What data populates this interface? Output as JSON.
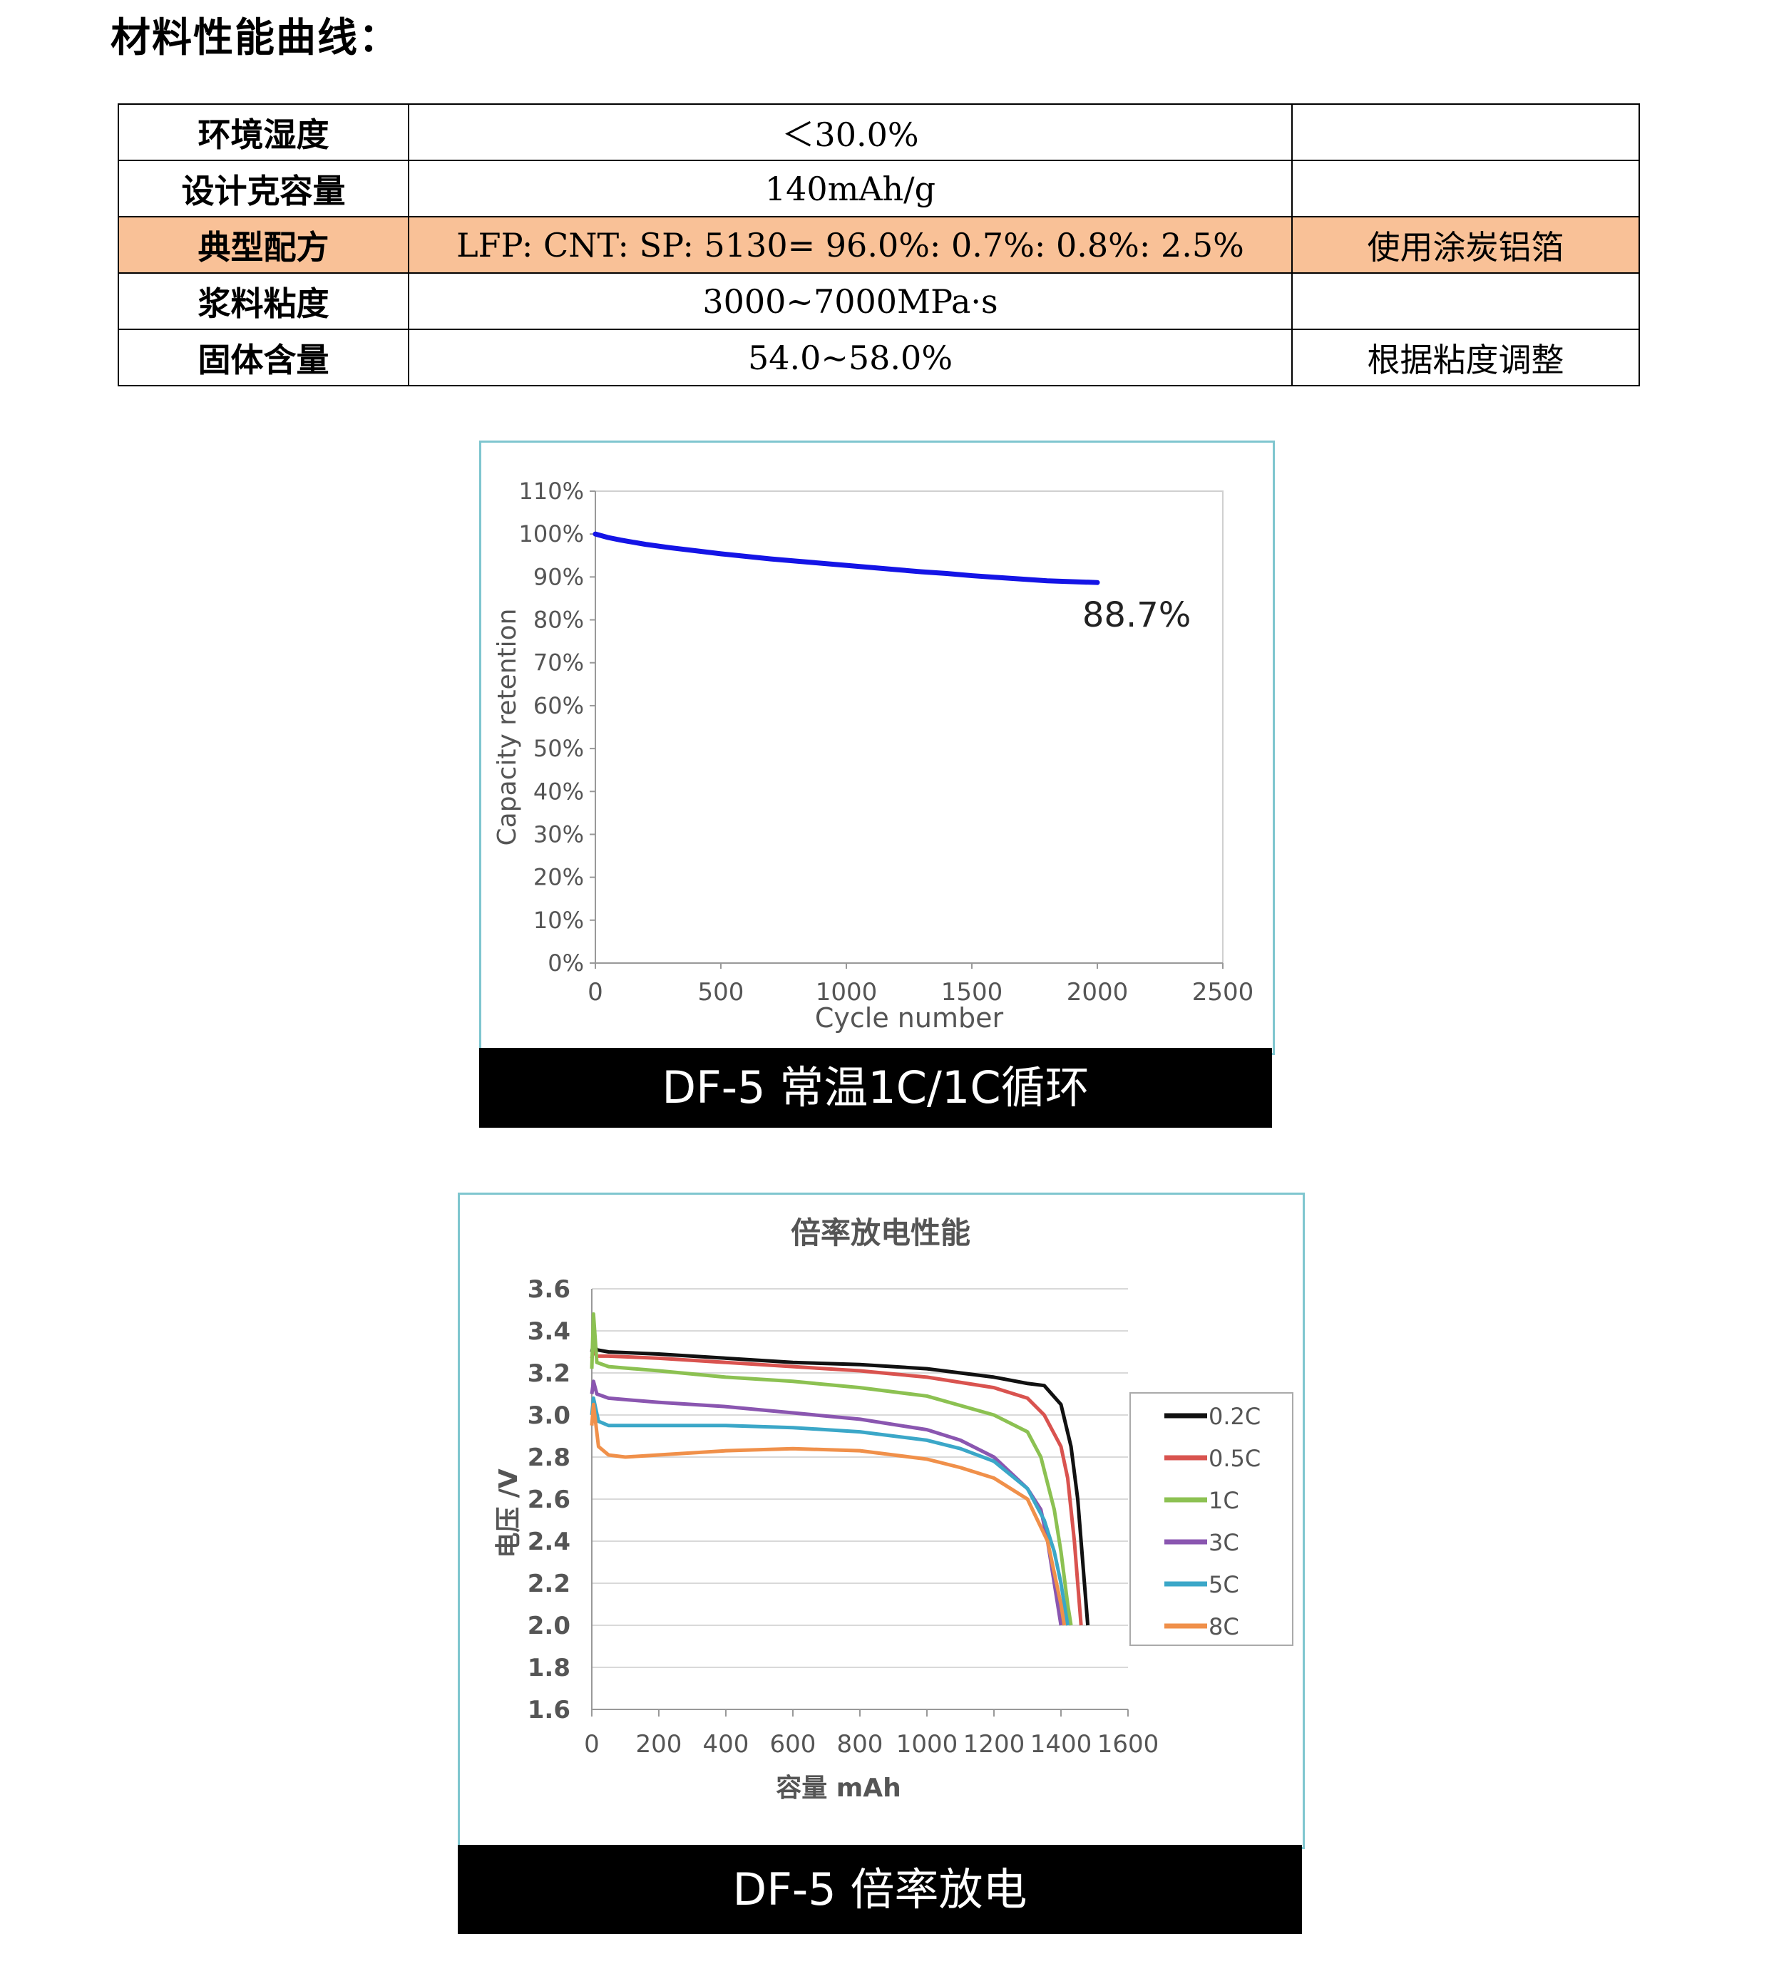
{
  "heading": "材料性能曲线：",
  "table": {
    "rows": [
      {
        "key": "环境湿度",
        "value": "＜30.0%",
        "note": ""
      },
      {
        "key": "设计克容量",
        "value": "140mAh/g",
        "note": ""
      },
      {
        "key": "典型配方",
        "value": "LFP: CNT: SP: 5130= 96.0%: 0.7%: 0.8%: 2.5%",
        "note": "使用涂炭铝箔"
      },
      {
        "key": "浆料粘度",
        "value": "3000~7000MPa·s",
        "note": ""
      },
      {
        "key": "固体含量",
        "value": "54.0~58.0%",
        "note": "根据粘度调整"
      }
    ]
  },
  "chart_data": [
    {
      "type": "line",
      "xlabel": "Cycle number",
      "ylabel": "Capacity retention",
      "xlim": [
        0,
        2500
      ],
      "ylim": [
        0,
        110
      ],
      "xticks": [
        "0",
        "500",
        "1000",
        "1500",
        "2000",
        "2500"
      ],
      "yticks": [
        "0%",
        "10%",
        "20%",
        "30%",
        "40%",
        "50%",
        "60%",
        "70%",
        "80%",
        "90%",
        "100%",
        "110%"
      ],
      "series": [
        {
          "color": "#1414e6",
          "x": [
            0,
            50,
            100,
            200,
            300,
            400,
            500,
            600,
            700,
            800,
            900,
            1000,
            1100,
            1200,
            1300,
            1400,
            1500,
            1600,
            1700,
            1800,
            1900,
            2000
          ],
          "y": [
            100,
            99.2,
            98.6,
            97.6,
            96.8,
            96.1,
            95.4,
            94.8,
            94.2,
            93.7,
            93.2,
            92.7,
            92.2,
            91.7,
            91.2,
            90.8,
            90.3,
            89.9,
            89.5,
            89.1,
            88.9,
            88.7
          ]
        }
      ],
      "annotation": "88.7%",
      "caption": "DF-5 常温1C/1C循环"
    },
    {
      "type": "line",
      "title": "倍率放电性能",
      "xlabel": "容量 mAh",
      "ylabel": "电压 /V",
      "xlim": [
        0,
        1600
      ],
      "ylim": [
        1.6,
        3.6
      ],
      "xticks": [
        "0",
        "200",
        "400",
        "600",
        "800",
        "1000",
        "1200",
        "1400",
        "1600"
      ],
      "yticks": [
        "1.6",
        "1.8",
        "2.0",
        "2.2",
        "2.4",
        "2.6",
        "2.8",
        "3.0",
        "3.2",
        "3.4",
        "3.6"
      ],
      "legend_position": "right",
      "series": [
        {
          "name": "0.2C",
          "color": "#111111",
          "x": [
            0,
            5,
            15,
            50,
            200,
            400,
            600,
            800,
            1000,
            1200,
            1300,
            1350,
            1400,
            1430,
            1450,
            1460,
            1470,
            1480
          ],
          "y": [
            3.3,
            3.34,
            3.31,
            3.3,
            3.29,
            3.27,
            3.25,
            3.24,
            3.22,
            3.18,
            3.15,
            3.14,
            3.05,
            2.85,
            2.6,
            2.4,
            2.2,
            2.0
          ]
        },
        {
          "name": "0.5C",
          "color": "#d9534f",
          "x": [
            0,
            5,
            15,
            50,
            200,
            400,
            600,
            800,
            1000,
            1200,
            1300,
            1350,
            1400,
            1420,
            1440,
            1450,
            1460
          ],
          "y": [
            3.27,
            3.31,
            3.28,
            3.28,
            3.27,
            3.25,
            3.23,
            3.21,
            3.18,
            3.13,
            3.08,
            3.0,
            2.85,
            2.7,
            2.4,
            2.2,
            2.0
          ]
        },
        {
          "name": "1C",
          "color": "#8cc152",
          "x": [
            0,
            5,
            15,
            50,
            200,
            400,
            600,
            800,
            1000,
            1200,
            1300,
            1340,
            1380,
            1400,
            1420,
            1430
          ],
          "y": [
            3.22,
            3.48,
            3.25,
            3.23,
            3.21,
            3.18,
            3.16,
            3.13,
            3.09,
            3.0,
            2.92,
            2.8,
            2.55,
            2.35,
            2.1,
            2.0
          ]
        },
        {
          "name": "3C",
          "color": "#8a56b0",
          "x": [
            0,
            5,
            15,
            50,
            200,
            400,
            600,
            800,
            1000,
            1100,
            1200,
            1300,
            1340,
            1360,
            1380,
            1390,
            1400
          ],
          "y": [
            3.1,
            3.16,
            3.1,
            3.08,
            3.06,
            3.04,
            3.01,
            2.98,
            2.93,
            2.88,
            2.8,
            2.65,
            2.55,
            2.4,
            2.2,
            2.1,
            2.0
          ]
        },
        {
          "name": "5C",
          "color": "#3ba7c8",
          "x": [
            0,
            5,
            20,
            50,
            200,
            400,
            600,
            800,
            1000,
            1100,
            1200,
            1300,
            1350,
            1380,
            1400,
            1410,
            1420
          ],
          "y": [
            3.0,
            3.08,
            2.97,
            2.95,
            2.95,
            2.95,
            2.94,
            2.92,
            2.88,
            2.84,
            2.78,
            2.65,
            2.5,
            2.35,
            2.2,
            2.1,
            2.0
          ]
        },
        {
          "name": "8C",
          "color": "#f0904a",
          "x": [
            0,
            5,
            20,
            50,
            100,
            200,
            400,
            600,
            800,
            1000,
            1100,
            1200,
            1300,
            1330,
            1360,
            1380,
            1400,
            1410
          ],
          "y": [
            2.95,
            3.05,
            2.85,
            2.81,
            2.8,
            2.81,
            2.83,
            2.84,
            2.83,
            2.79,
            2.75,
            2.7,
            2.6,
            2.5,
            2.4,
            2.25,
            2.1,
            2.0
          ]
        }
      ],
      "caption": "DF-5  倍率放电"
    }
  ]
}
